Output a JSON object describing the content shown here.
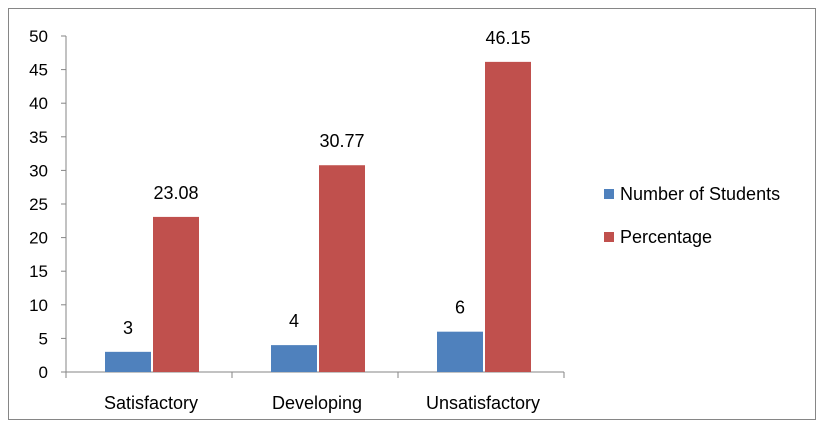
{
  "chart_data": {
    "type": "bar",
    "title": "",
    "xlabel": "",
    "ylabel": "",
    "categories": [
      "Satisfactory",
      "Developing",
      "Unsatisfactory"
    ],
    "series": [
      {
        "name": "Number of Students",
        "color": "#4f81bd",
        "values": [
          3,
          4,
          6
        ],
        "labels": [
          "3",
          "4",
          "6"
        ]
      },
      {
        "name": "Percentage",
        "color": "#c0504d",
        "values": [
          23.08,
          30.77,
          46.15
        ],
        "labels": [
          "23.08",
          "30.77",
          "46.15"
        ]
      }
    ],
    "ylim": [
      0,
      50
    ],
    "yticks": [
      0,
      5,
      10,
      15,
      20,
      25,
      30,
      35,
      40,
      45,
      50
    ],
    "ytick_labels": [
      "0",
      "5",
      "10",
      "15",
      "20",
      "25",
      "30",
      "35",
      "40",
      "45",
      "50"
    ],
    "grid": false,
    "legend_position": "right"
  }
}
